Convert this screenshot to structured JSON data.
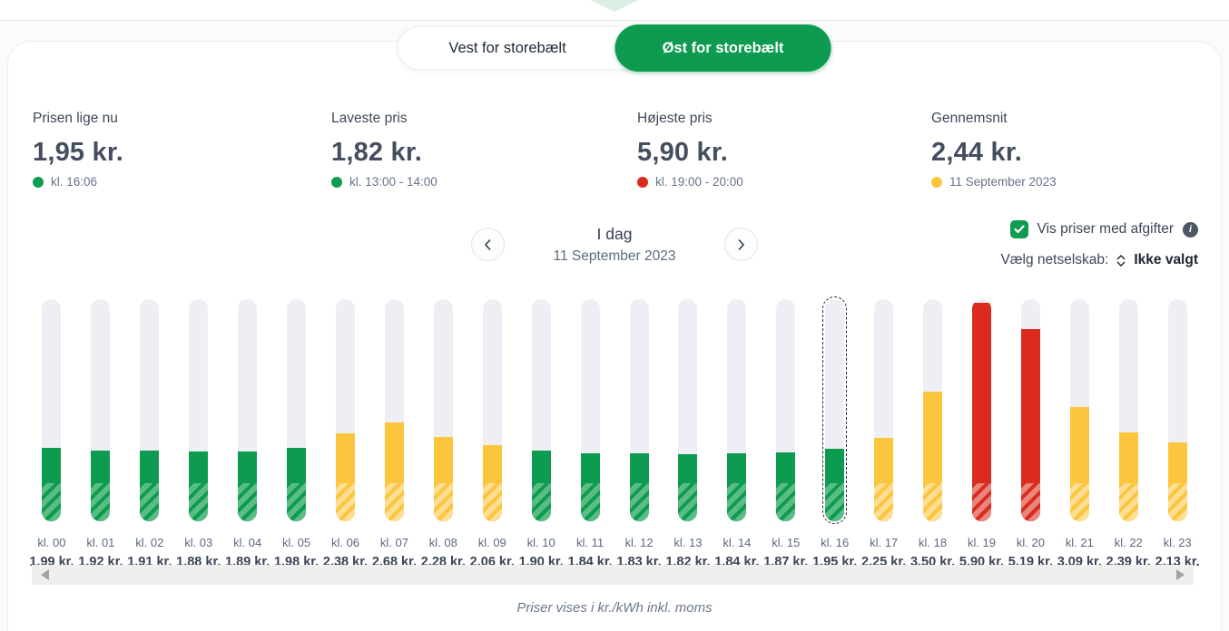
{
  "tabs": [
    {
      "label": "Vest for storebælt",
      "active": false
    },
    {
      "label": "Øst for storebælt",
      "active": true
    }
  ],
  "stats": [
    {
      "label": "Prisen lige nu",
      "value": "1,95 kr.",
      "detail": "kl. 16:06",
      "dot": "green"
    },
    {
      "label": "Laveste pris",
      "value": "1,82 kr.",
      "detail": "kl. 13:00 - 14:00",
      "dot": "green"
    },
    {
      "label": "Højeste pris",
      "value": "5,90 kr.",
      "detail": "kl. 19:00 - 20:00",
      "dot": "red"
    },
    {
      "label": "Gennemsnit",
      "value": "2,44 kr.",
      "detail": "11 September 2023",
      "dot": "yellow"
    }
  ],
  "date_nav": {
    "title": "I dag",
    "date": "11 September 2023"
  },
  "controls": {
    "checkbox_label": "Vis priser med afgifter",
    "checkbox_checked": true,
    "info_icon": "info-circle",
    "select_label": "Vælg netselskab:",
    "select_value": "Ikke valgt"
  },
  "chart_data": {
    "type": "bar",
    "title": "I dag",
    "subtitle": "11 September 2023",
    "ylabel": "kr./kWh",
    "ylim": [
      0,
      6
    ],
    "grid": false,
    "categories": [
      "kl. 00",
      "kl. 01",
      "kl. 02",
      "kl. 03",
      "kl. 04",
      "kl. 05",
      "kl. 06",
      "kl. 07",
      "kl. 08",
      "kl. 09",
      "kl. 10",
      "kl. 11",
      "kl. 12",
      "kl. 13",
      "kl. 14",
      "kl. 15",
      "kl. 16",
      "kl. 17",
      "kl. 18",
      "kl. 19",
      "kl. 20",
      "kl. 21",
      "kl. 22",
      "kl. 23"
    ],
    "values": [
      1.99,
      1.92,
      1.91,
      1.88,
      1.89,
      1.98,
      2.38,
      2.68,
      2.28,
      2.06,
      1.9,
      1.84,
      1.83,
      1.82,
      1.84,
      1.87,
      1.95,
      2.25,
      3.5,
      5.9,
      5.19,
      3.09,
      2.39,
      2.13
    ],
    "value_labels": [
      "1,99 kr.",
      "1,92 kr.",
      "1,91 kr.",
      "1,88 kr.",
      "1,89 kr.",
      "1,98 kr.",
      "2,38 kr.",
      "2,68 kr.",
      "2,28 kr.",
      "2,06 kr.",
      "1,90 kr.",
      "1,84 kr.",
      "1,83 kr.",
      "1,82 kr.",
      "1,84 kr.",
      "1,87 kr.",
      "1,95 kr.",
      "2,25 kr.",
      "3,50 kr.",
      "5,90 kr.",
      "5,19 kr.",
      "3,09 kr.",
      "2,39 kr.",
      "2,13 kr."
    ],
    "levels": [
      "green",
      "green",
      "green",
      "green",
      "green",
      "green",
      "yellow",
      "yellow",
      "yellow",
      "yellow",
      "green",
      "green",
      "green",
      "green",
      "green",
      "green",
      "green",
      "yellow",
      "yellow",
      "red",
      "red",
      "yellow",
      "yellow",
      "yellow"
    ],
    "selected_index": 16,
    "colors": {
      "green": "#0D9B4F",
      "green_light": "#5BBD85",
      "yellow": "#FBC53E",
      "yellow_light": "#FDDE92",
      "red": "#DB2B1F",
      "red_light": "#E9867D",
      "track": "#EDEFF4"
    }
  },
  "footer": {
    "note": "Priser vises i kr./kWh inkl. moms"
  }
}
